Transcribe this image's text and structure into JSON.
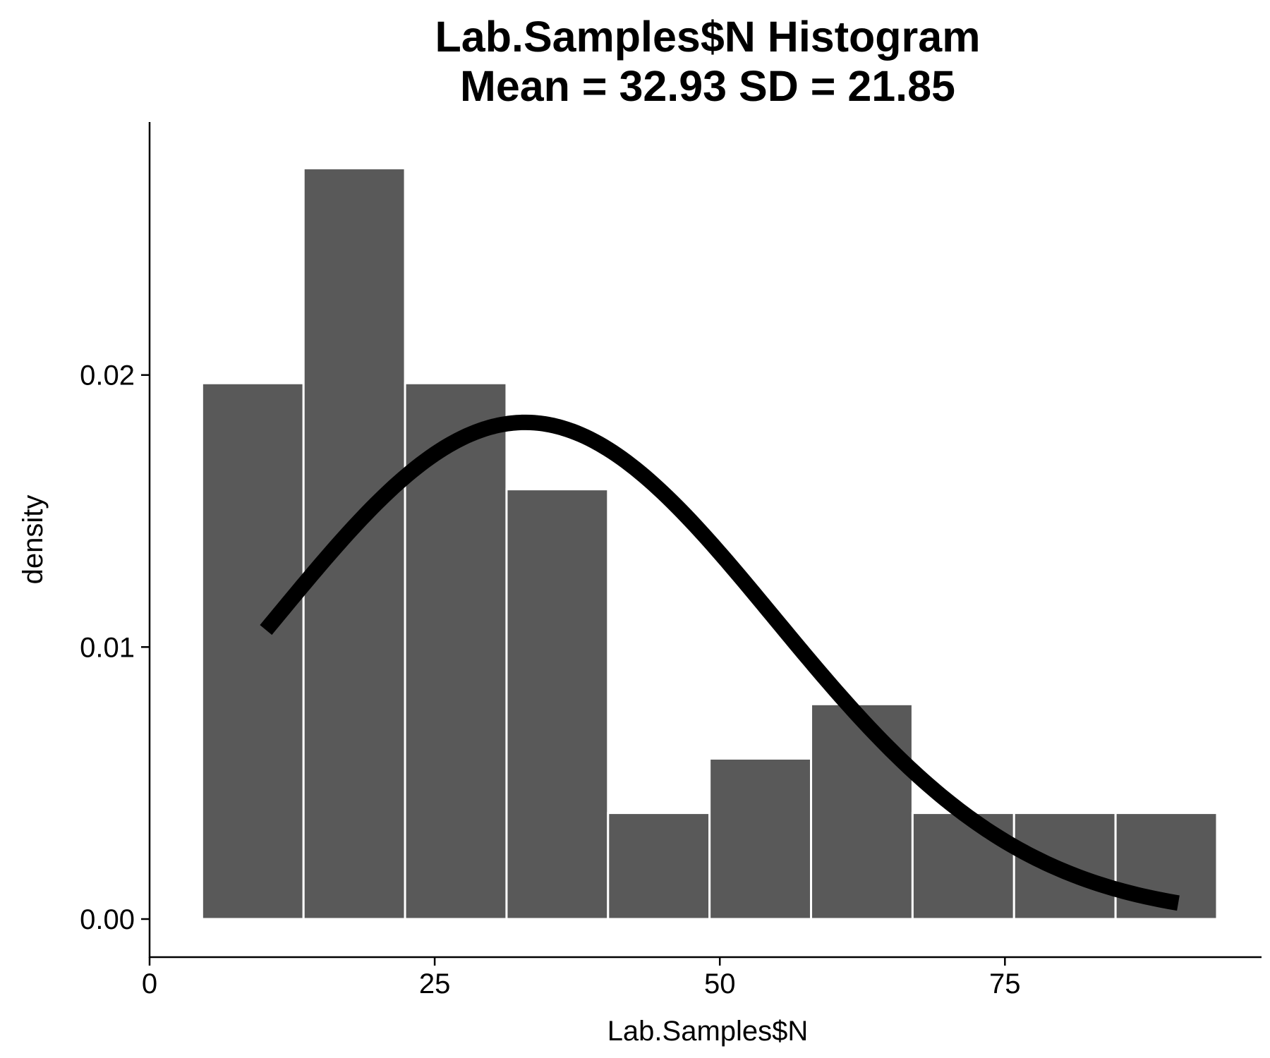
{
  "chart_data": {
    "type": "bar",
    "title": "Lab.Samples$N Histogram",
    "subtitle": "Mean = 32.93 SD = 21.85",
    "xlabel": "Lab.Samples$N",
    "ylabel": "density",
    "xlim": [
      0,
      97.5
    ],
    "ylim": [
      -0.0014,
      0.0293
    ],
    "x_ticks": [
      0,
      25,
      50,
      75
    ],
    "x_tick_labels": [
      "0",
      "25",
      "50",
      "75"
    ],
    "y_ticks": [
      0,
      0.01,
      0.02
    ],
    "y_tick_labels": [
      "0.00",
      "0.01",
      "0.02"
    ],
    "grid": false,
    "legend": "none",
    "bins": [
      {
        "x0": 4.6,
        "x1": 13.5,
        "density": 0.0197
      },
      {
        "x0": 13.5,
        "x1": 22.4,
        "density": 0.0276
      },
      {
        "x0": 22.4,
        "x1": 31.3,
        "density": 0.0197
      },
      {
        "x0": 31.3,
        "x1": 40.2,
        "density": 0.0158
      },
      {
        "x0": 40.2,
        "x1": 49.1,
        "density": 0.0039
      },
      {
        "x0": 49.1,
        "x1": 58.0,
        "density": 0.0059
      },
      {
        "x0": 58.0,
        "x1": 66.9,
        "density": 0.0079
      },
      {
        "x0": 66.9,
        "x1": 75.8,
        "density": 0.0039
      },
      {
        "x0": 75.8,
        "x1": 84.7,
        "density": 0.0039
      },
      {
        "x0": 84.7,
        "x1": 93.6,
        "density": 0.0039
      }
    ],
    "curve": {
      "type": "normal-density",
      "mean": 32.93,
      "sd": 21.85,
      "x_range": [
        10.2,
        90.2
      ]
    },
    "colors": {
      "bar_fill": "#595959",
      "bar_border": "#ffffff",
      "curve": "#000000",
      "axis": "#000000"
    }
  }
}
